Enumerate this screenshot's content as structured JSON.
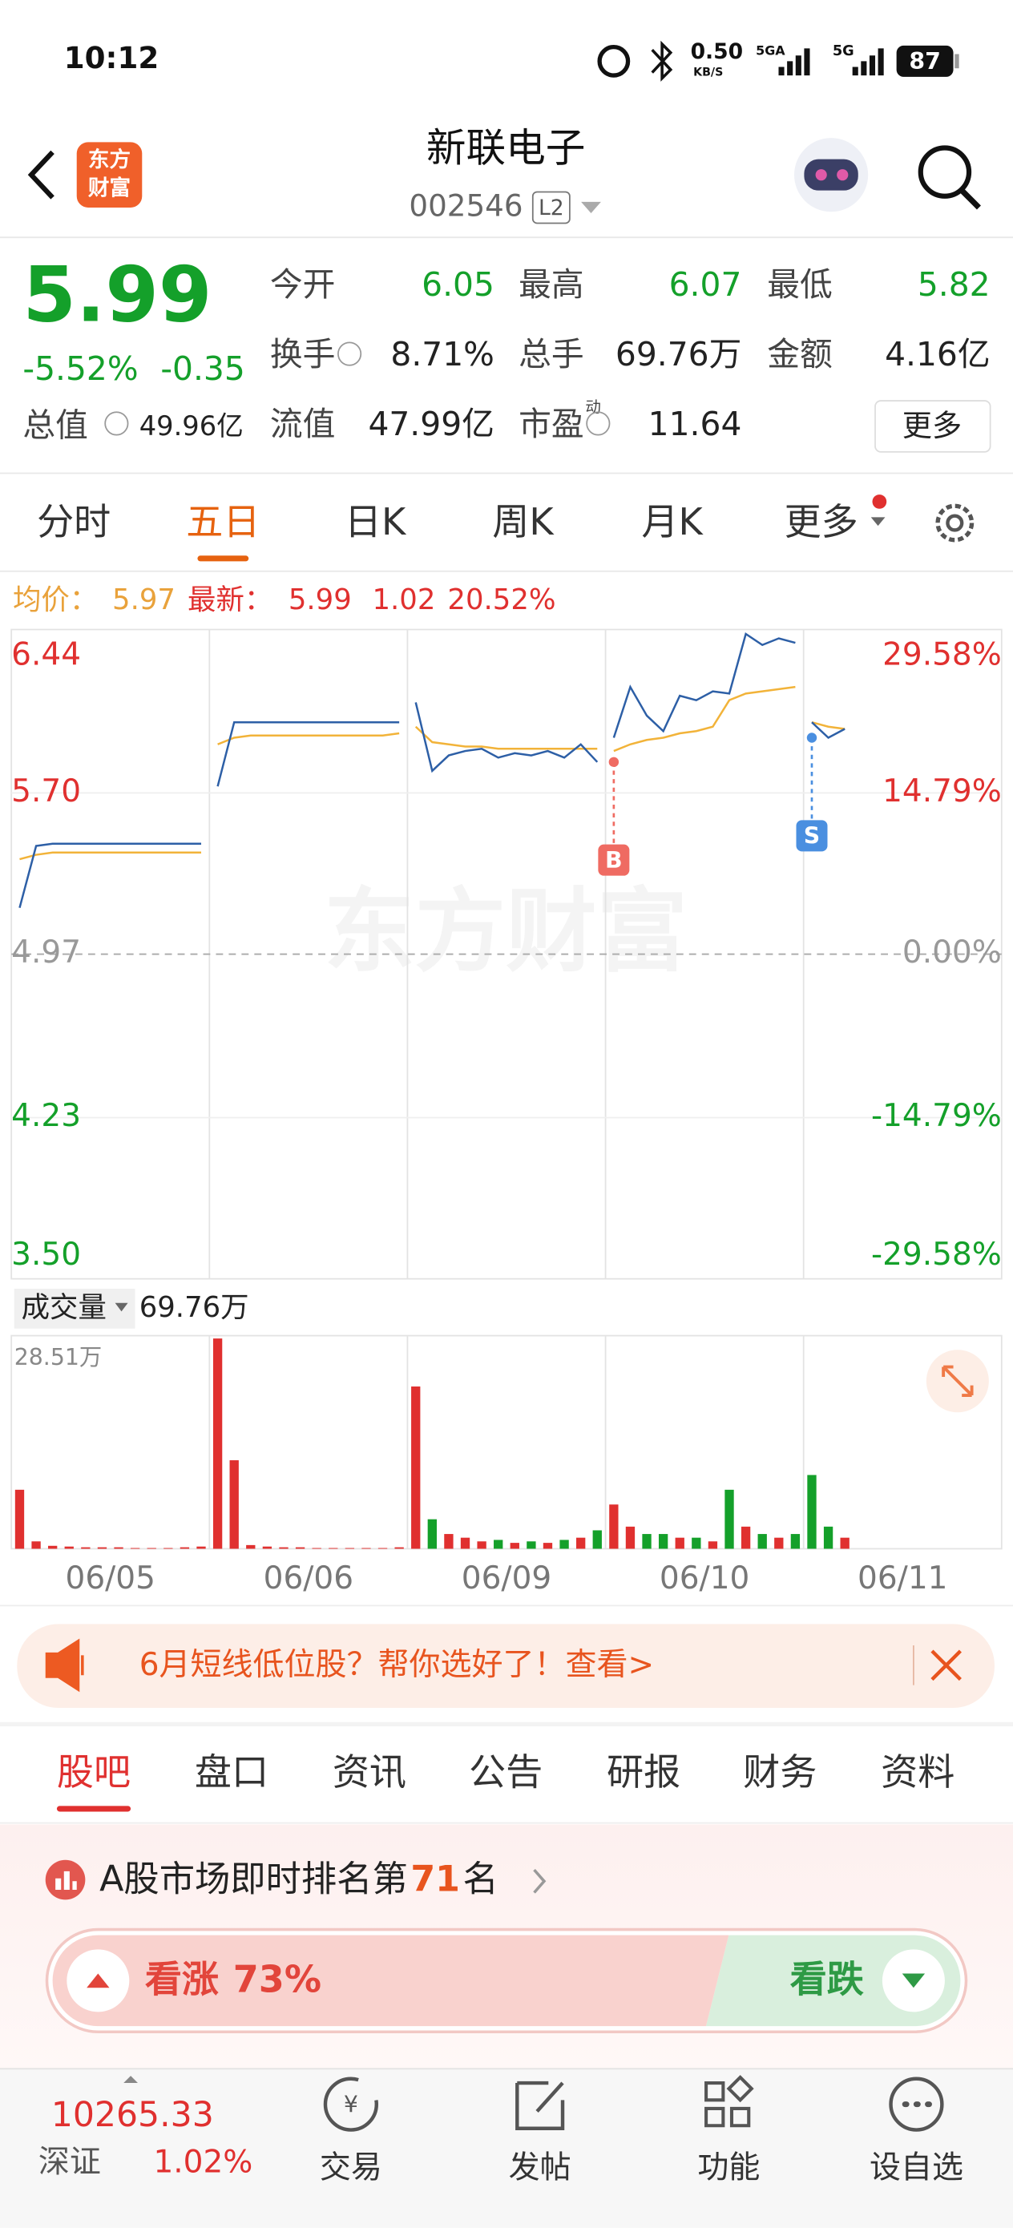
{
  "status_bar": {
    "time": "10:12",
    "net_speed": "0.50",
    "net_unit": "KB/S",
    "network": [
      "5GA",
      "5G"
    ],
    "battery": "87"
  },
  "header": {
    "logo_line1": "东方",
    "logo_line2": "财富",
    "title": "新联电子",
    "code": "002546",
    "level": "L2"
  },
  "quote": {
    "price": "5.99",
    "change_pct": "-5.52%",
    "change": "-0.35",
    "total_value_label": "总值",
    "total_value": "49.96亿",
    "more": "更多",
    "fields": [
      {
        "label": "今开",
        "value": "6.05",
        "color": "#14a02a"
      },
      {
        "label": "最高",
        "value": "6.07",
        "color": "#14a02a"
      },
      {
        "label": "最低",
        "value": "5.82",
        "color": "#14a02a"
      },
      {
        "label": "换手",
        "value": "8.71%",
        "info": true,
        "color": "#222222"
      },
      {
        "label": "总手",
        "value": "69.76万",
        "color": "#222222"
      },
      {
        "label": "金额",
        "value": "4.16亿",
        "color": "#222222"
      },
      {
        "label": "流值",
        "value": "47.99亿",
        "color": "#222222"
      },
      {
        "label": "市盈",
        "sup": "动",
        "info": true,
        "value": "11.64",
        "color": "#222222"
      }
    ]
  },
  "tabs": {
    "items": [
      "分时",
      "五日",
      "日K",
      "周K",
      "月K",
      "更多"
    ],
    "active": 1
  },
  "chart": {
    "legend": {
      "avg_label": "均价：",
      "avg": "5.97",
      "latest_label": "最新：",
      "latest": "5.99",
      "change": "1.02",
      "change_pct": "20.52%"
    },
    "watermark": "东方财富",
    "ylim": [
      3.5,
      6.44
    ],
    "yticks": [
      {
        "value": 6.44,
        "label": "6.44"
      },
      {
        "value": 5.7,
        "label": "5.70"
      },
      {
        "value": 4.97,
        "label": "4.97"
      },
      {
        "value": 4.23,
        "label": "4.23"
      },
      {
        "value": 3.5,
        "label": "3.50"
      }
    ],
    "y2lim": [
      -29.58,
      29.58
    ],
    "y2ticks": [
      {
        "value": 29.58,
        "label": "29.58%"
      },
      {
        "value": 14.79,
        "label": "14.79%"
      },
      {
        "value": 0,
        "label": "0.00%"
      },
      {
        "value": -14.79,
        "label": "-14.79%"
      },
      {
        "value": -29.58,
        "label": "-29.58%"
      }
    ],
    "colors": {
      "price": "#2d5fa6",
      "avg": "#f2b339",
      "up": "#e0302f",
      "down": "#14a02a"
    },
    "days": [
      {
        "date": "06/05",
        "price": [
          5.18,
          5.46,
          5.47,
          5.47,
          5.47,
          5.47,
          5.47,
          5.47,
          5.47,
          5.47,
          5.47,
          5.47
        ],
        "avg": [
          5.4,
          5.42,
          5.43,
          5.43,
          5.43,
          5.43,
          5.43,
          5.43,
          5.43,
          5.43,
          5.43,
          5.43
        ],
        "volume": [
          8,
          1,
          0.4,
          0.3,
          0.2,
          0.2,
          0.2,
          0.1,
          0.1,
          0.1,
          0.2,
          0.3
        ]
      },
      {
        "date": "06/06",
        "price": [
          5.73,
          6.02,
          6.02,
          6.02,
          6.02,
          6.02,
          6.02,
          6.02,
          6.02,
          6.02,
          6.02,
          6.02
        ],
        "avg": [
          5.92,
          5.95,
          5.96,
          5.96,
          5.96,
          5.96,
          5.96,
          5.96,
          5.96,
          5.96,
          5.96,
          5.97
        ],
        "volume": [
          28.51,
          12,
          0.5,
          0.3,
          0.2,
          0.2,
          0.1,
          0.1,
          0.1,
          0.1,
          0.1,
          0.2
        ]
      },
      {
        "date": "06/09",
        "price": [
          6.11,
          5.8,
          5.87,
          5.89,
          5.9,
          5.86,
          5.88,
          5.87,
          5.89,
          5.86,
          5.92,
          5.84
        ],
        "avg": [
          6.0,
          5.93,
          5.92,
          5.91,
          5.91,
          5.9,
          5.9,
          5.9,
          5.9,
          5.9,
          5.9,
          5.9
        ],
        "volume": [
          22,
          4,
          2,
          1.5,
          1,
          1.2,
          0.8,
          1,
          0.8,
          1.2,
          1.5,
          2.5
        ]
      },
      {
        "date": "06/10",
        "price": [
          5.95,
          6.18,
          6.05,
          5.98,
          6.14,
          6.12,
          6.16,
          6.15,
          6.42,
          6.37,
          6.4,
          6.38
        ],
        "avg": [
          5.89,
          5.92,
          5.94,
          5.95,
          5.97,
          5.98,
          6.0,
          6.12,
          6.15,
          6.16,
          6.17,
          6.18
        ],
        "volume": [
          6,
          3,
          2,
          2,
          1.5,
          1.5,
          1,
          8,
          3,
          2,
          1.5,
          2
        ]
      },
      {
        "date": "06/11",
        "price": [
          6.02,
          5.95,
          5.99,
          null,
          null,
          null,
          null,
          null,
          null,
          null,
          null,
          null
        ],
        "avg": [
          6.02,
          6.0,
          5.99,
          null,
          null,
          null,
          null,
          null,
          null,
          null,
          null,
          null
        ],
        "volume": [
          10,
          3,
          1.5,
          null,
          null,
          null,
          null,
          null,
          null,
          null,
          null,
          null
        ]
      }
    ],
    "markers": [
      {
        "label": "B",
        "day": 3,
        "slot": 0,
        "value": 5.84,
        "color": "#ef6b62"
      },
      {
        "label": "S",
        "day": 4,
        "slot": 0,
        "value": 5.95,
        "color": "#4a8fe0"
      }
    ],
    "volume_label": "成交量",
    "volume_total": "69.76万",
    "volume_ylim": [
      0,
      28.51
    ],
    "volume_ticks": [
      {
        "value": 28.51,
        "label": "28.51万"
      }
    ]
  },
  "banner": {
    "text": "6月短线低位股？帮你选好了！查看>"
  },
  "sub_tabs": {
    "items": [
      "股吧",
      "盘口",
      "资讯",
      "公告",
      "研报",
      "财务",
      "资料"
    ],
    "active": 0
  },
  "rank": {
    "prefix": "A股市场即时排名第",
    "rank": "71",
    "suffix": "名"
  },
  "sentiment": {
    "up_label": "看涨",
    "values": [
      73
    ],
    "value_labels": [
      "73%"
    ],
    "down_label": "看跌"
  },
  "bottom_nav": {
    "index_value": "10265.33",
    "index_name": "深证",
    "index_change": "1.02%",
    "items": [
      "交易",
      "发帖",
      "功能",
      "设自选"
    ]
  }
}
